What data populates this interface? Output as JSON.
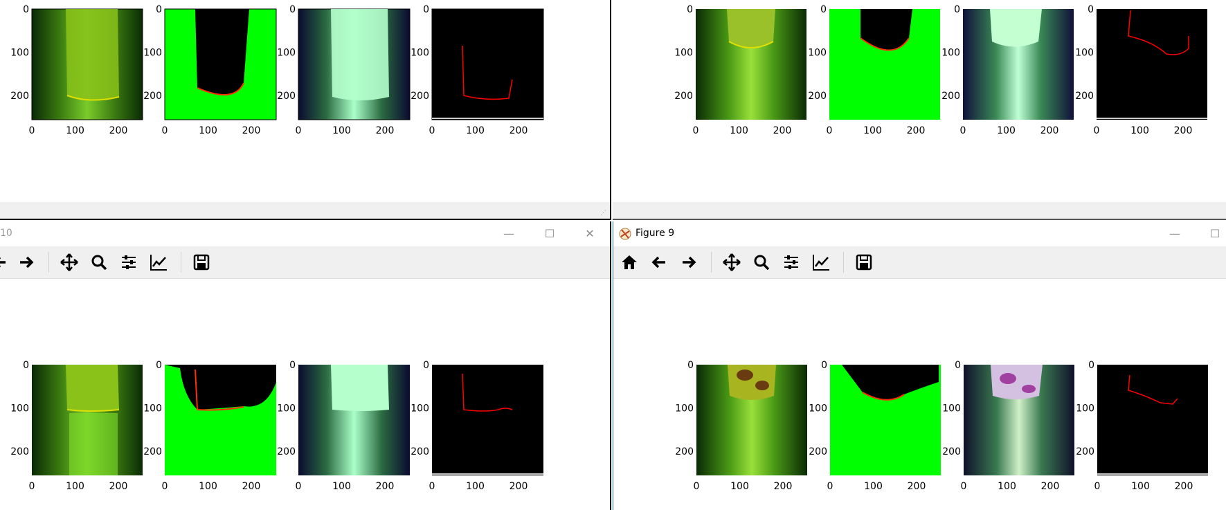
{
  "windows": {
    "top_left": {
      "title": ""
    },
    "top_right": {
      "title": ""
    },
    "bottom_left": {
      "title": "10"
    },
    "bottom_right": {
      "title": "Figure 9"
    }
  },
  "axis": {
    "y_ticks": [
      "0",
      "100",
      "200"
    ],
    "x_ticks": [
      "0",
      "100",
      "200"
    ]
  },
  "toolbar": {
    "buttons": [
      "home",
      "back",
      "forward",
      "pan",
      "zoom",
      "configure-subplots",
      "edit-axis",
      "save"
    ]
  },
  "colors": {
    "plot_green": "#00ff00",
    "edge_red": "#ff0000",
    "background_black": "#000000",
    "toolbar_bg": "#f0f0f0",
    "active_border": "#1f6fc5"
  }
}
